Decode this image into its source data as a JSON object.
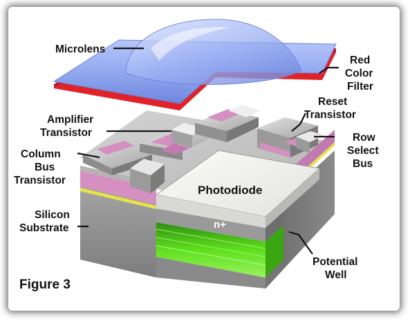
{
  "labels": {
    "microlens": "Microlens",
    "red_color_filter": [
      "Red",
      "Color",
      "Filter"
    ],
    "reset_transistor": [
      "Reset",
      "Transistor"
    ],
    "amplifier_transistor": [
      "Amplifier",
      "Transistor"
    ],
    "row_select_bus": [
      "Row",
      "Select",
      "Bus"
    ],
    "column_bus_transistor": [
      "Column",
      "Bus",
      "Transistor"
    ],
    "photodiode": "Photodiode",
    "n_plus": "n+",
    "silicon_substrate": [
      "Silicon",
      "Substrate"
    ],
    "potential_well": [
      "Potential",
      "Well"
    ]
  },
  "caption": "Figure 3",
  "colors": {
    "lens_blue": "#8fa6ee",
    "filter_red": "#e0232a",
    "substrate_gray": "#8c8c8c",
    "transistor_pink": "#d58fc0",
    "bus_yellow": "#e8e24a",
    "well_green": "#5ee01e",
    "photodiode_white": "#f2f2ef"
  }
}
